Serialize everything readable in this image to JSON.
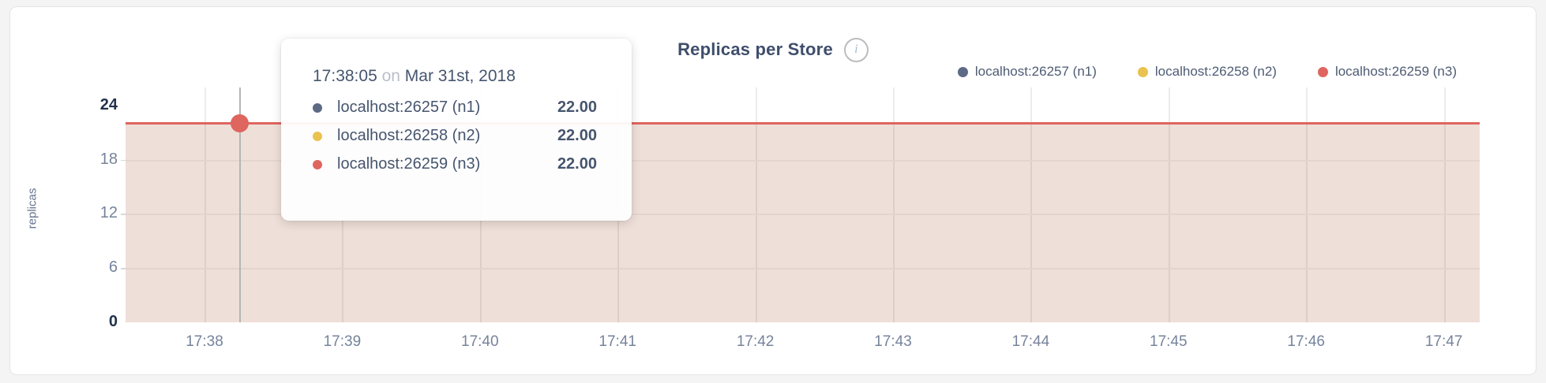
{
  "header": {
    "title": "Replicas per Store",
    "info_glyph": "i"
  },
  "chart_data": {
    "type": "area",
    "title": "Replicas per Store",
    "ylabel": "replicas",
    "xlabel": "",
    "ylim": [
      0,
      26
    ],
    "yticks": [
      0,
      6,
      12,
      18,
      24
    ],
    "yticks_emphasized": [
      0,
      24
    ],
    "x_ticks": [
      "17:38",
      "17:39",
      "17:40",
      "17:41",
      "17:42",
      "17:43",
      "17:44",
      "17:45",
      "17:46",
      "17:47"
    ],
    "grid": true,
    "legend_position": "top-right",
    "constant_value": 22,
    "line_color": "#df655f",
    "fill_color": "#efdfd9",
    "hover_x_label": "17:38:05",
    "series": [
      {
        "name": "localhost:26257 (n1)",
        "color": "#5d6a85",
        "value": 22.0
      },
      {
        "name": "localhost:26258 (n2)",
        "color": "#e9c24f",
        "value": 22.0
      },
      {
        "name": "localhost:26259 (n3)",
        "color": "#df655f",
        "value": 22.0
      }
    ]
  },
  "tooltip": {
    "time": "17:38:05",
    "on_word": "on",
    "date": "Mar 31st, 2018",
    "rows": [
      {
        "name": "localhost:26257 (n1)",
        "value": "22.00",
        "color": "#5d6a85"
      },
      {
        "name": "localhost:26258 (n2)",
        "value": "22.00",
        "color": "#e9c24f"
      },
      {
        "name": "localhost:26259 (n3)",
        "value": "22.00",
        "color": "#df655f"
      }
    ]
  }
}
